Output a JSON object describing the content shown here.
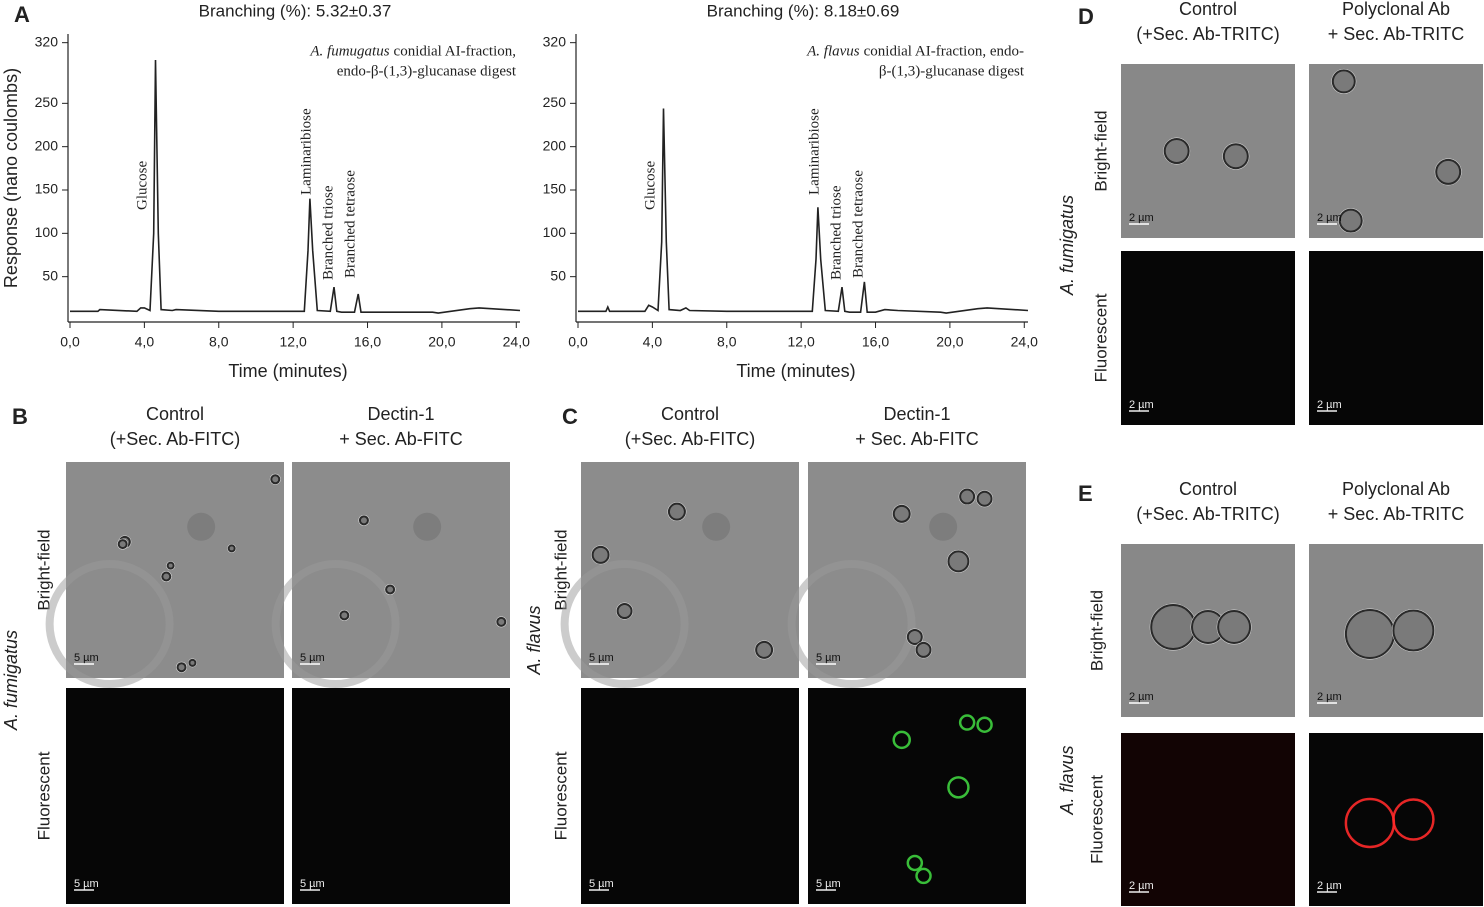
{
  "chart_data": [
    {
      "type": "line",
      "title": "Branching (%): 5.32±0.37",
      "x_label": "Time (minutes)",
      "y_label": "Response (nano coulombs)",
      "annotation": {
        "species": "A. fumugatus",
        "lines": [
          "conidial AI-fraction,",
          "endo-β-(1,3)-glucanase digest"
        ]
      },
      "peak_labels": [
        "Glucose",
        "Laminaribiose",
        "Branched triose",
        "Branched tetraose"
      ],
      "color": "#222222",
      "x": [
        0,
        1.5,
        1.6,
        3.6,
        3.8,
        4.0,
        4.3,
        4.5,
        4.6,
        4.75,
        4.9,
        5.5,
        5.7,
        8.0,
        12.6,
        12.8,
        12.9,
        13.05,
        13.3,
        14.0,
        14.2,
        14.35,
        14.6,
        15.3,
        15.5,
        15.65,
        16,
        19.5,
        19.8,
        21.5,
        22,
        24.2
      ],
      "values": [
        10,
        10,
        12,
        10,
        14,
        14,
        11,
        100,
        300,
        100,
        12,
        11,
        12,
        10,
        10,
        80,
        140,
        80,
        11,
        10,
        38,
        10,
        9,
        9,
        30,
        9,
        9,
        9,
        8,
        13,
        14,
        11
      ],
      "xlim": [
        0,
        24.2
      ],
      "ylim": [
        0,
        330
      ],
      "xticks": [
        {
          "value": 0,
          "label": "0,0"
        },
        {
          "value": 4,
          "label": "4,0"
        },
        {
          "value": 8,
          "label": "8,0"
        },
        {
          "value": 12,
          "label": "12,0"
        },
        {
          "value": 16,
          "label": "16,0"
        },
        {
          "value": 20,
          "label": "20,0"
        },
        {
          "value": 24,
          "label": "24,0"
        }
      ],
      "yticks": [
        50,
        100,
        150,
        200,
        250,
        320
      ]
    },
    {
      "type": "line",
      "title": "Branching (%): 8.18±0.69",
      "x_label": "Time (minutes)",
      "annotation": {
        "species": "A. flavus",
        "lines": [
          "conidial AI-fraction, endo-",
          "β-(1,3)-glucanase digest"
        ]
      },
      "peak_labels": [
        "Glucose",
        "Laminaribiose",
        "Branched triose",
        "Branched tetraose"
      ],
      "color": "#222222",
      "x": [
        0,
        1.5,
        1.6,
        1.7,
        3.6,
        3.8,
        4.0,
        4.3,
        4.5,
        4.6,
        4.75,
        4.9,
        5.5,
        5.8,
        6.0,
        8.0,
        12.6,
        12.8,
        12.9,
        13.05,
        13.3,
        14.0,
        14.2,
        14.35,
        14.6,
        15.2,
        15.4,
        15.55,
        16,
        16.5,
        17.2,
        19.5,
        19.8,
        21.5,
        22,
        24.2
      ],
      "values": [
        10,
        10,
        15,
        10,
        10,
        17,
        15,
        11,
        90,
        244,
        90,
        12,
        11,
        14,
        11,
        10,
        10,
        70,
        130,
        70,
        11,
        10,
        38,
        10,
        9,
        9,
        44,
        9,
        9,
        12,
        11,
        9,
        8,
        13,
        14,
        11
      ],
      "xlim": [
        0,
        24.2
      ],
      "ylim": [
        0,
        330
      ],
      "xticks": [
        {
          "value": 0,
          "label": "0,0"
        },
        {
          "value": 4,
          "label": "4,0"
        },
        {
          "value": 8,
          "label": "8,0"
        },
        {
          "value": 12,
          "label": "12,0"
        },
        {
          "value": 16,
          "label": "16,0"
        },
        {
          "value": 20,
          "label": "20,0"
        },
        {
          "value": 24,
          "label": "24,0"
        }
      ],
      "yticks": [
        50,
        100,
        150,
        200,
        250,
        320
      ]
    }
  ],
  "panel_a": {
    "letter": "A"
  },
  "panels": [
    {
      "letter": "B",
      "species": "A. fumigatus",
      "columns": [
        [
          "Control",
          "(+Sec. Ab-FITC)"
        ],
        [
          "Dectin-1",
          "+ Sec. Ab-FITC"
        ]
      ],
      "rows": [
        "Bright-field",
        "Fluorescent"
      ],
      "scale": "5 µm"
    },
    {
      "letter": "C",
      "species": "A. flavus",
      "columns": [
        [
          "Control",
          "(+Sec. Ab-FITC)"
        ],
        [
          "Dectin-1",
          "+ Sec. Ab-FITC"
        ]
      ],
      "rows": [
        "Bright-field",
        "Fluorescent"
      ],
      "scale": "5 µm"
    },
    {
      "letter": "D",
      "species": "A. fumigatus",
      "columns": [
        [
          "Control",
          "(+Sec. Ab-TRITC)"
        ],
        [
          "Polyclonal Ab",
          "+ Sec. Ab-TRITC"
        ]
      ],
      "rows": [
        "Bright-field",
        "Fluorescent"
      ],
      "scale": "2 µm"
    },
    {
      "letter": "E",
      "species": "A. flavus",
      "columns": [
        [
          "Control",
          "(+Sec. Ab-TRITC)"
        ],
        [
          "Polyclonal Ab",
          "+ Sec. Ab-TRITC"
        ]
      ],
      "rows": [
        "Bright-field",
        "Fluorescent"
      ],
      "scale": "2 µm"
    }
  ]
}
